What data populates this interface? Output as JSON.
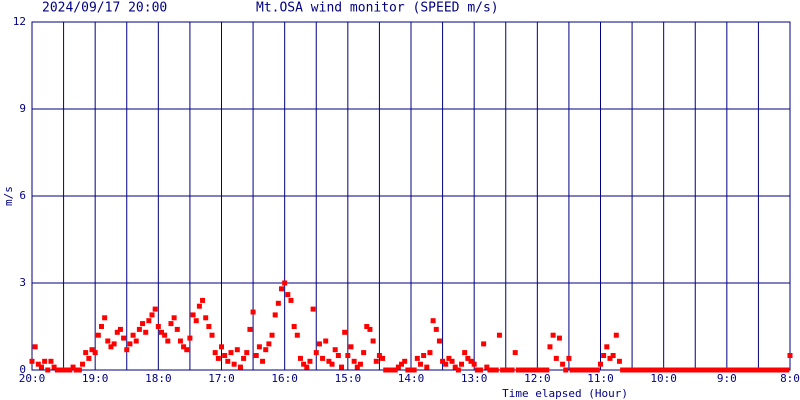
{
  "chart_data": {
    "type": "scatter",
    "title": "Mt.OSA wind monitor (SPEED m/s)",
    "subtitle": "2024/09/17 20:00",
    "y_label": "m/s",
    "x_label": "Time elapsed (Hour)",
    "color": "#ff0000",
    "grid": true,
    "xlim": [
      0,
      12
    ],
    "ylim": [
      0,
      12
    ],
    "yticks": [
      0,
      3,
      6,
      9,
      12
    ],
    "xticks": [
      {
        "value": 0,
        "label": "20:0"
      },
      {
        "value": 1,
        "label": "19:0"
      },
      {
        "value": 2,
        "label": "18:0"
      },
      {
        "value": 3,
        "label": "17:0"
      },
      {
        "value": 4,
        "label": "16:0"
      },
      {
        "value": 5,
        "label": "15:0"
      },
      {
        "value": 6,
        "label": "14:0"
      },
      {
        "value": 7,
        "label": "13:0"
      },
      {
        "value": 8,
        "label": "12:0"
      },
      {
        "value": 9,
        "label": "11:0"
      },
      {
        "value": 10,
        "label": "10:0"
      },
      {
        "value": 11,
        "label": "9:0"
      },
      {
        "value": 12,
        "label": "8:0"
      }
    ],
    "xminor_ticks": [
      0.5,
      1.5,
      2.5,
      3.5,
      4.5,
      5.5,
      6.5,
      7.5,
      8.5,
      9.5,
      10.5,
      11.5
    ],
    "x": [
      0,
      0.05,
      0.1,
      0.15,
      0.2,
      0.25,
      0.3,
      0.35,
      0.4,
      0.45,
      0.5,
      0.55,
      0.6,
      0.65,
      0.7,
      0.75,
      0.8,
      0.85,
      0.9,
      0.95,
      1,
      1.05,
      1.1,
      1.15,
      1.2,
      1.25,
      1.3,
      1.35,
      1.4,
      1.45,
      1.5,
      1.55,
      1.6,
      1.65,
      1.7,
      1.75,
      1.8,
      1.85,
      1.9,
      1.95,
      2,
      2.05,
      2.1,
      2.15,
      2.2,
      2.25,
      2.3,
      2.35,
      2.4,
      2.45,
      2.5,
      2.55,
      2.6,
      2.65,
      2.7,
      2.75,
      2.8,
      2.85,
      2.9,
      2.95,
      3,
      3.05,
      3.1,
      3.15,
      3.2,
      3.25,
      3.3,
      3.35,
      3.4,
      3.45,
      3.5,
      3.55,
      3.6,
      3.65,
      3.7,
      3.75,
      3.8,
      3.85,
      3.9,
      3.95,
      4,
      4.05,
      4.1,
      4.15,
      4.2,
      4.25,
      4.3,
      4.35,
      4.4,
      4.45,
      4.5,
      4.55,
      4.6,
      4.65,
      4.7,
      4.75,
      4.8,
      4.85,
      4.9,
      4.95,
      5,
      5.05,
      5.1,
      5.15,
      5.2,
      5.25,
      5.3,
      5.35,
      5.4,
      5.45,
      5.5,
      5.55,
      5.6,
      5.65,
      5.7,
      5.75,
      5.8,
      5.85,
      5.9,
      5.95,
      6,
      6.05,
      6.1,
      6.15,
      6.2,
      6.25,
      6.3,
      6.35,
      6.4,
      6.45,
      6.5,
      6.55,
      6.6,
      6.65,
      6.7,
      6.75,
      6.8,
      6.85,
      6.9,
      6.95,
      7,
      7.05,
      7.1,
      7.15,
      7.2,
      7.25,
      7.3,
      7.35,
      7.4,
      7.45,
      7.5,
      7.55,
      7.6,
      7.65,
      7.7,
      7.75,
      7.8,
      7.85,
      7.9,
      7.95,
      8,
      8.05,
      8.1,
      8.15,
      8.2,
      8.25,
      8.3,
      8.35,
      8.4,
      8.45,
      8.5,
      8.55,
      8.6,
      8.65,
      8.7,
      8.75,
      8.8,
      8.85,
      8.9,
      8.95,
      9,
      9.05,
      9.1,
      9.15,
      9.2,
      9.25,
      9.3,
      9.35,
      9.4,
      9.45,
      9.5,
      9.55,
      9.6,
      9.65,
      9.7,
      9.75,
      9.8,
      9.85,
      9.9,
      9.95,
      10,
      10.05,
      10.1,
      10.15,
      10.2,
      10.25,
      10.3,
      10.35,
      10.4,
      10.45,
      10.5,
      10.55,
      10.6,
      10.65,
      10.7,
      10.75,
      10.8,
      10.85,
      10.9,
      10.95,
      11,
      11.05,
      11.1,
      11.15,
      11.2,
      11.25,
      11.3,
      11.35,
      11.4,
      11.45,
      11.5,
      11.55,
      11.6,
      11.65,
      11.7,
      11.75,
      11.8,
      11.85,
      11.9,
      11.95,
      12
    ],
    "values": [
      0.3,
      0.8,
      0.2,
      0.1,
      0.3,
      0,
      0.3,
      0.1,
      0,
      0,
      0,
      0,
      0,
      0.1,
      0,
      0,
      0.2,
      0.6,
      0.4,
      0.7,
      0.6,
      1.2,
      1.5,
      1.8,
      1.0,
      0.8,
      0.9,
      1.3,
      1.4,
      1.1,
      0.7,
      0.9,
      1.2,
      1.0,
      1.4,
      1.6,
      1.3,
      1.7,
      1.9,
      2.1,
      1.5,
      1.3,
      1.2,
      1.0,
      1.6,
      1.8,
      1.4,
      1.0,
      0.8,
      0.7,
      1.1,
      1.9,
      1.7,
      2.2,
      2.4,
      1.8,
      1.5,
      1.2,
      0.6,
      0.4,
      0.8,
      0.5,
      0.3,
      0.6,
      0.2,
      0.7,
      0.1,
      0.4,
      0.6,
      1.4,
      2.0,
      0.5,
      0.8,
      0.3,
      0.7,
      0.9,
      1.2,
      1.9,
      2.3,
      2.8,
      3.0,
      2.6,
      2.4,
      1.5,
      1.2,
      0.4,
      0.2,
      0.1,
      0.3,
      2.1,
      0.6,
      0.9,
      0.4,
      1.0,
      0.3,
      0.2,
      0.7,
      0.5,
      0.1,
      1.3,
      0.5,
      0.8,
      0.3,
      0.1,
      0.2,
      0.6,
      1.5,
      1.4,
      1.0,
      0.3,
      0.5,
      0.4,
      0,
      0,
      0,
      0,
      0.1,
      0.2,
      0.3,
      0,
      0,
      0,
      0.4,
      0.2,
      0.5,
      0.1,
      0.6,
      1.7,
      1.4,
      1.0,
      0.3,
      0.2,
      0.4,
      0.3,
      0.1,
      0,
      0.2,
      0.6,
      0.4,
      0.3,
      0.2,
      0,
      0,
      0.9,
      0.1,
      0,
      0,
      0,
      1.2,
      0,
      0,
      0,
      0,
      0.6,
      0,
      0,
      0,
      0,
      0,
      0,
      0,
      0,
      0,
      0,
      0.8,
      1.2,
      0.4,
      1.1,
      0.2,
      0,
      0.4,
      0,
      0,
      0,
      0,
      0,
      0,
      0,
      0,
      0,
      0.2,
      0.5,
      0.8,
      0.4,
      0.5,
      1.2,
      0.3,
      0,
      0,
      0,
      0,
      0,
      0,
      0,
      0,
      0,
      0,
      0,
      0,
      0,
      0,
      0,
      0,
      0,
      0,
      0,
      0,
      0,
      0,
      0,
      0,
      0,
      0,
      0,
      0,
      0,
      0,
      0,
      0,
      0,
      0,
      0,
      0,
      0,
      0,
      0,
      0,
      0,
      0,
      0,
      0,
      0,
      0,
      0,
      0,
      0,
      0,
      0,
      0,
      0,
      0.5
    ]
  }
}
